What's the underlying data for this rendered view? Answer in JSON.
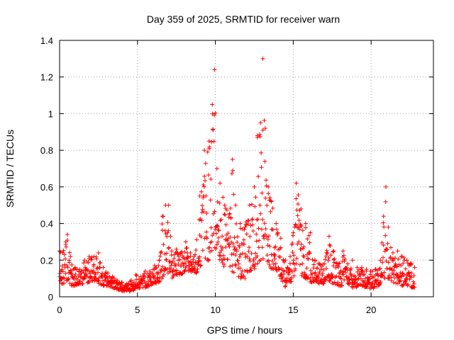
{
  "chart_data": {
    "type": "scatter",
    "title": "Day 359 of 2025, SRMTID for receiver warn",
    "xlabel": "GPS time / hours",
    "ylabel": "SRMTID / TECUs",
    "xlim": [
      0,
      24
    ],
    "ylim": [
      0,
      1.4
    ],
    "x_ticks": [
      0,
      5,
      10,
      15,
      20
    ],
    "y_ticks": [
      0,
      0.2,
      0.4,
      0.6,
      0.8,
      1,
      1.2,
      1.4
    ],
    "x_tick_labels": [
      "0",
      "5",
      "10",
      "15",
      "20"
    ],
    "y_tick_labels": [
      "0",
      "0.2",
      "0.4",
      "0.6",
      "0.8",
      "1",
      "1.2",
      "1.4"
    ],
    "grid": true,
    "marker": "+",
    "color": "#ff0000",
    "series": [
      {
        "name": "SRMTID",
        "envelope": [
          [
            0.0,
            0.05,
            0.25
          ],
          [
            0.2,
            0.07,
            0.24
          ],
          [
            0.4,
            0.08,
            0.3
          ],
          [
            0.5,
            0.08,
            0.34
          ],
          [
            0.7,
            0.06,
            0.22
          ],
          [
            1.0,
            0.06,
            0.16
          ],
          [
            1.3,
            0.07,
            0.15
          ],
          [
            1.6,
            0.07,
            0.2
          ],
          [
            1.9,
            0.08,
            0.22
          ],
          [
            2.2,
            0.08,
            0.22
          ],
          [
            2.5,
            0.07,
            0.24
          ],
          [
            2.8,
            0.06,
            0.16
          ],
          [
            3.1,
            0.06,
            0.13
          ],
          [
            3.4,
            0.05,
            0.11
          ],
          [
            3.7,
            0.04,
            0.09
          ],
          [
            4.0,
            0.03,
            0.08
          ],
          [
            4.3,
            0.03,
            0.07
          ],
          [
            4.6,
            0.03,
            0.09
          ],
          [
            4.9,
            0.04,
            0.12
          ],
          [
            5.2,
            0.05,
            0.11
          ],
          [
            5.5,
            0.05,
            0.14
          ],
          [
            5.8,
            0.06,
            0.14
          ],
          [
            6.1,
            0.07,
            0.17
          ],
          [
            6.4,
            0.08,
            0.2
          ],
          [
            6.6,
            0.1,
            0.44
          ],
          [
            6.8,
            0.12,
            0.5
          ],
          [
            7.0,
            0.13,
            0.5
          ],
          [
            7.2,
            0.1,
            0.25
          ],
          [
            7.5,
            0.12,
            0.26
          ],
          [
            7.8,
            0.12,
            0.24
          ],
          [
            8.1,
            0.14,
            0.3
          ],
          [
            8.4,
            0.14,
            0.24
          ],
          [
            8.7,
            0.12,
            0.23
          ],
          [
            9.0,
            0.16,
            0.55
          ],
          [
            9.3,
            0.18,
            0.8
          ],
          [
            9.6,
            0.2,
            0.85
          ],
          [
            9.8,
            0.25,
            1.05
          ],
          [
            9.95,
            0.25,
            1.24
          ],
          [
            10.1,
            0.22,
            0.7
          ],
          [
            10.3,
            0.2,
            0.62
          ],
          [
            10.6,
            0.15,
            0.5
          ],
          [
            10.9,
            0.12,
            0.45
          ],
          [
            11.1,
            0.14,
            0.75
          ],
          [
            11.3,
            0.12,
            0.5
          ],
          [
            11.6,
            0.1,
            0.4
          ],
          [
            11.9,
            0.1,
            0.38
          ],
          [
            12.2,
            0.14,
            0.5
          ],
          [
            12.5,
            0.15,
            0.6
          ],
          [
            12.7,
            0.18,
            0.88
          ],
          [
            12.9,
            0.2,
            0.95
          ],
          [
            13.05,
            0.2,
            1.3
          ],
          [
            13.2,
            0.22,
            0.92
          ],
          [
            13.4,
            0.18,
            0.6
          ],
          [
            13.6,
            0.15,
            0.52
          ],
          [
            13.9,
            0.15,
            0.4
          ],
          [
            14.2,
            0.1,
            0.32
          ],
          [
            14.5,
            0.05,
            0.2
          ],
          [
            14.8,
            0.06,
            0.22
          ],
          [
            15.0,
            0.1,
            0.35
          ],
          [
            15.2,
            0.15,
            0.62
          ],
          [
            15.5,
            0.12,
            0.48
          ],
          [
            15.8,
            0.1,
            0.4
          ],
          [
            16.1,
            0.08,
            0.35
          ],
          [
            16.4,
            0.08,
            0.2
          ],
          [
            16.7,
            0.07,
            0.18
          ],
          [
            17.0,
            0.07,
            0.18
          ],
          [
            17.3,
            0.08,
            0.33
          ],
          [
            17.6,
            0.07,
            0.25
          ],
          [
            17.9,
            0.06,
            0.18
          ],
          [
            18.2,
            0.06,
            0.25
          ],
          [
            18.5,
            0.07,
            0.18
          ],
          [
            18.8,
            0.05,
            0.2
          ],
          [
            19.1,
            0.05,
            0.16
          ],
          [
            19.4,
            0.06,
            0.16
          ],
          [
            19.7,
            0.05,
            0.15
          ],
          [
            20.0,
            0.04,
            0.14
          ],
          [
            20.3,
            0.05,
            0.15
          ],
          [
            20.6,
            0.07,
            0.2
          ],
          [
            20.8,
            0.1,
            0.44
          ],
          [
            20.95,
            0.1,
            0.6
          ],
          [
            21.1,
            0.09,
            0.38
          ],
          [
            21.4,
            0.08,
            0.24
          ],
          [
            21.7,
            0.07,
            0.25
          ],
          [
            22.0,
            0.06,
            0.22
          ],
          [
            22.3,
            0.06,
            0.2
          ],
          [
            22.6,
            0.05,
            0.18
          ],
          [
            22.8,
            0.05,
            0.16
          ]
        ]
      }
    ]
  }
}
